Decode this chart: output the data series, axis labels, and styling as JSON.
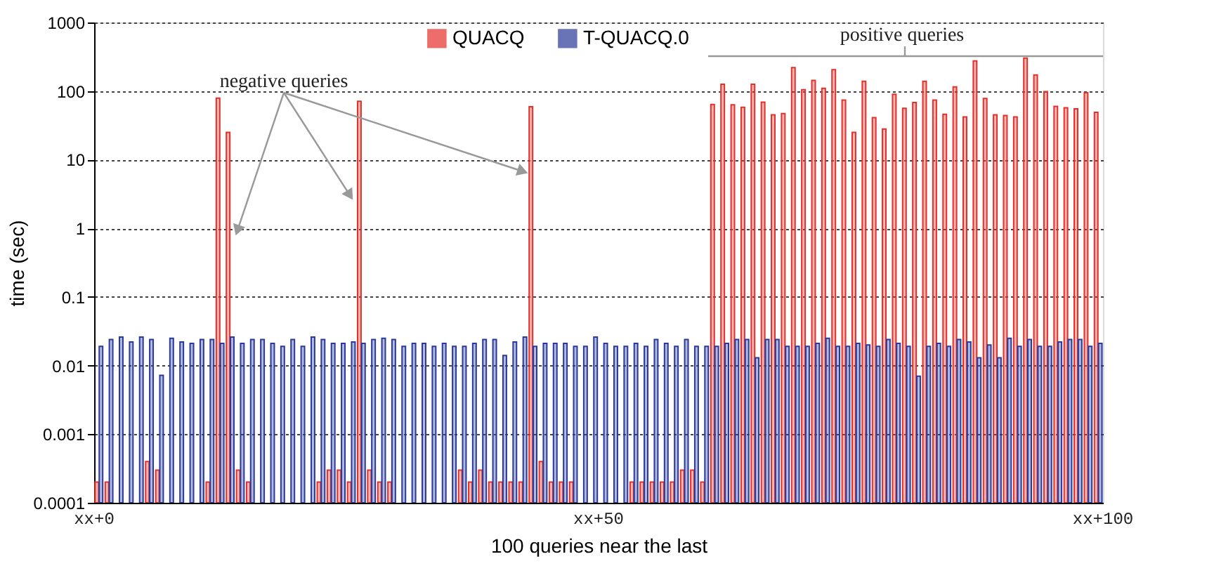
{
  "chart_data": {
    "type": "bar",
    "xlabel": "100 queries near the last",
    "ylabel": "time (sec)",
    "categories": [
      null,
      null,
      null,
      null,
      null,
      null,
      null,
      null,
      null,
      null,
      null,
      null,
      null,
      null,
      null,
      null,
      null,
      null,
      null,
      null,
      null,
      null,
      null,
      null,
      null,
      null,
      null,
      null,
      null,
      null,
      null,
      null,
      null,
      null,
      null,
      null,
      null,
      null,
      null,
      null,
      null,
      null,
      null,
      null,
      null,
      null,
      null,
      null,
      null,
      null,
      null,
      null,
      null,
      null,
      null,
      null,
      null,
      null,
      null,
      null,
      null,
      null,
      null,
      null,
      null,
      null,
      null,
      null,
      null,
      null,
      null,
      null,
      null,
      null,
      null,
      null,
      null,
      null,
      null,
      null,
      null,
      null,
      null,
      null,
      null,
      null,
      null,
      null,
      null,
      null,
      null,
      null,
      null,
      null,
      null,
      null,
      null,
      null,
      null,
      null
    ],
    "series": [
      {
        "name": "QUACQ",
        "color": "#e4302a",
        "values": [
          0.0002,
          0.0002,
          null,
          null,
          null,
          0.0004,
          0.0003,
          null,
          null,
          null,
          null,
          0.0002,
          79,
          25,
          0.0003,
          0.0002,
          null,
          null,
          null,
          null,
          null,
          null,
          0.0002,
          0.0003,
          0.0003,
          0.0002,
          71,
          0.0003,
          0.0002,
          0.0002,
          null,
          null,
          null,
          null,
          null,
          null,
          0.0003,
          0.0002,
          0.0003,
          0.0002,
          0.0002,
          0.0002,
          0.0002,
          59,
          0.0004,
          0.0002,
          0.0002,
          0.0002,
          null,
          null,
          null,
          null,
          null,
          0.0002,
          0.0002,
          0.0002,
          0.0002,
          0.0002,
          0.0003,
          0.0003,
          0.0002,
          64,
          126,
          63,
          58,
          126,
          69,
          45,
          47,
          220,
          105,
          143,
          110,
          205,
          74,
          25,
          139,
          41,
          28,
          90,
          56,
          68,
          139,
          74,
          46,
          115,
          42,
          275,
          78,
          45,
          44,
          42,
          302,
          172,
          98,
          60,
          57,
          55,
          95,
          49
        ]
      },
      {
        "name": "T-QUACQ.0",
        "color": "#2a3a9a",
        "values": [
          0.019,
          0.024,
          0.026,
          0.022,
          0.026,
          0.024,
          0.0072,
          0.025,
          0.022,
          0.021,
          0.024,
          0.024,
          0.021,
          0.026,
          0.021,
          0.024,
          0.024,
          0.021,
          0.019,
          0.024,
          0.019,
          0.026,
          0.024,
          0.021,
          0.021,
          0.022,
          0.021,
          0.024,
          0.025,
          0.024,
          0.019,
          0.021,
          0.021,
          0.019,
          0.021,
          0.019,
          0.019,
          0.021,
          0.024,
          0.024,
          0.014,
          0.022,
          0.026,
          0.019,
          0.021,
          0.021,
          0.021,
          0.019,
          0.019,
          0.026,
          0.021,
          0.019,
          0.019,
          0.021,
          0.019,
          0.024,
          0.021,
          0.019,
          0.024,
          0.019,
          0.019,
          0.019,
          0.021,
          0.024,
          0.024,
          0.013,
          0.024,
          0.024,
          0.019,
          0.019,
          0.019,
          0.021,
          0.025,
          0.019,
          0.019,
          0.021,
          0.02,
          0.019,
          0.024,
          0.021,
          0.019,
          0.007,
          0.019,
          0.021,
          0.019,
          0.024,
          0.022,
          0.013,
          0.02,
          0.013,
          0.025,
          0.019,
          0.024,
          0.019,
          0.019,
          0.022,
          0.024,
          0.024,
          0.019,
          0.021
        ]
      }
    ],
    "log": true,
    "ylim": [
      0.0001,
      1000
    ],
    "yticks": [
      0.0001,
      0.001,
      0.01,
      0.1,
      1,
      10,
      100,
      1000
    ],
    "grid": "y",
    "legend": "top",
    "annotations": [
      "negative queries",
      "positive queries",
      "xx+0",
      "xx+50",
      "xx+100"
    ]
  }
}
